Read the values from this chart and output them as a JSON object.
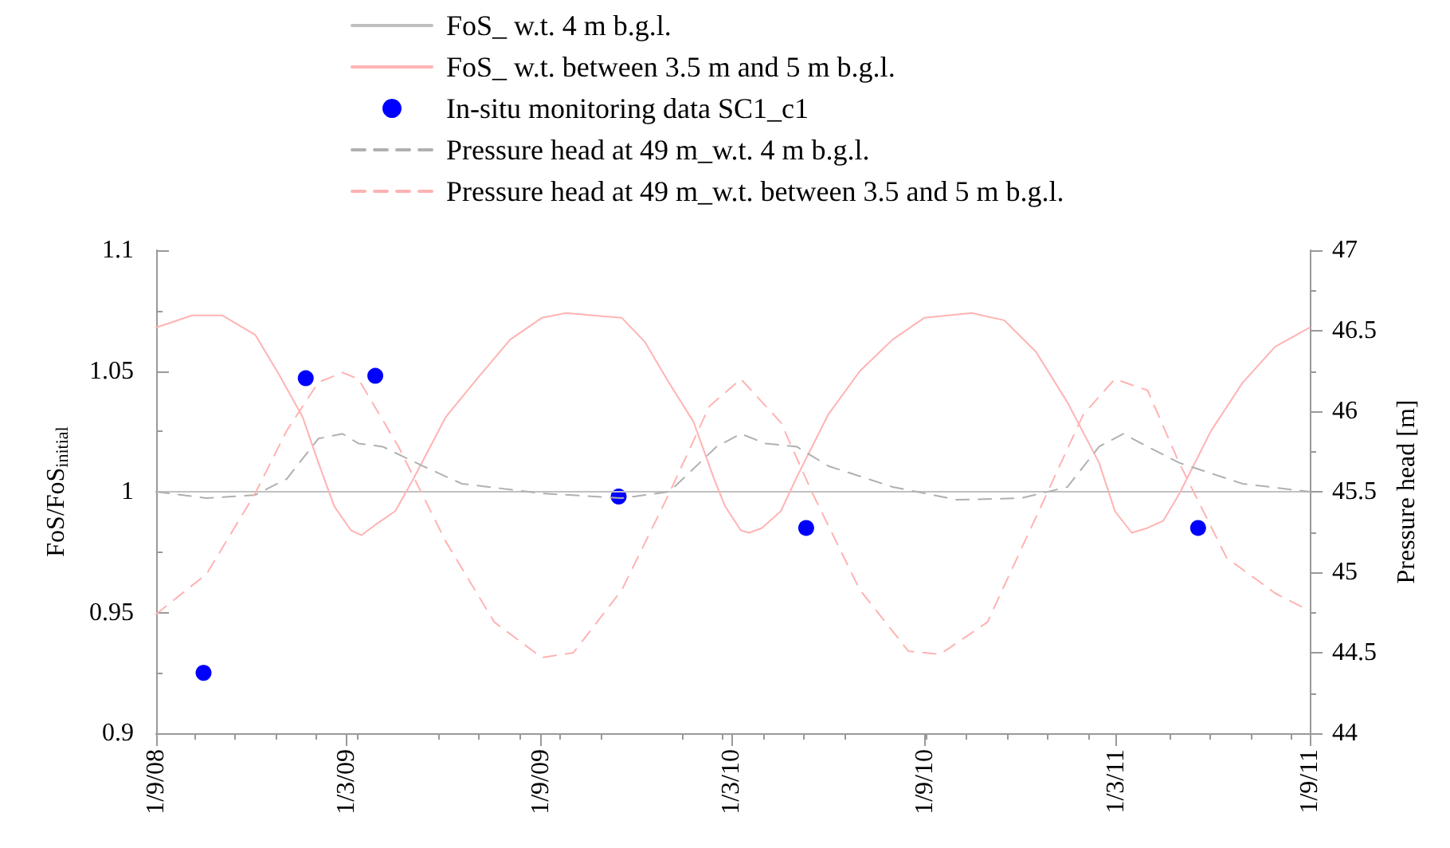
{
  "chart_data": {
    "type": "line",
    "ylabel": "FoS/FoS$_{initial}$",
    "y2label": "Pressure head [m]",
    "xlim": [
      "2008-09-01",
      "2011-09-01"
    ],
    "xticks": [
      {
        "value": "2008-09-01",
        "label": "1/9/08"
      },
      {
        "value": "2009-03-01",
        "label": "1/3/09"
      },
      {
        "value": "2009-09-01",
        "label": "1/9/09"
      },
      {
        "value": "2010-03-01",
        "label": "1/3/10"
      },
      {
        "value": "2010-09-01",
        "label": "1/9/10"
      },
      {
        "value": "2011-03-01",
        "label": "1/3/11"
      },
      {
        "value": "2011-09-01",
        "label": "1/9/11"
      }
    ],
    "ylim": [
      0.9,
      1.1
    ],
    "yticks": [
      0.9,
      0.95,
      1,
      1.05,
      1.1
    ],
    "y2lim": [
      44,
      47
    ],
    "y2ticks": [
      44,
      44.5,
      45,
      45.5,
      46,
      46.5,
      47
    ],
    "grid": false,
    "legend": "top",
    "series": [
      {
        "name": "FoS_ w.t. 4 m b.g.l.",
        "color": "#c0c0c0",
        "marker": "none",
        "line_style": "solid",
        "x": [
          "2008-09-01",
          "2011-09-01"
        ],
        "values": [
          1,
          1
        ]
      },
      {
        "name": "FoS_ w.t. between 3.5 m and 5 m b.g.l.",
        "color": "#ffb3b3",
        "marker": "none",
        "line_style": "solid",
        "x": [
          "2008-09-01",
          "2008-10-05",
          "2008-11-03",
          "2008-12-04",
          "2008-12-26",
          "2009-01-18",
          "2009-02-02",
          "2009-02-17",
          "2009-03-05",
          "2009-03-15",
          "2009-03-27",
          "2009-04-16",
          "2009-05-04",
          "2009-06-03",
          "2009-07-03",
          "2009-08-03",
          "2009-09-02",
          "2009-09-25",
          "2009-11-17",
          "2009-12-09",
          "2010-01-01",
          "2010-01-24",
          "2010-02-12",
          "2010-02-23",
          "2010-03-10",
          "2010-03-18",
          "2010-03-30",
          "2010-04-17",
          "2010-05-02",
          "2010-06-01",
          "2010-07-01",
          "2010-08-01",
          "2010-08-31",
          "2010-10-15",
          "2010-11-15",
          "2010-12-15",
          "2011-01-14",
          "2011-02-13",
          "2011-02-28",
          "2011-03-16",
          "2011-03-31",
          "2011-04-15",
          "2011-04-30",
          "2011-05-30",
          "2011-06-29",
          "2011-07-30",
          "2011-09-01"
        ],
        "values": [
          1.068,
          1.073,
          1.073,
          1.065,
          1.049,
          1.031,
          1.012,
          0.994,
          0.984,
          0.982,
          0.986,
          0.992,
          1.006,
          1.031,
          1.047,
          1.063,
          1.072,
          1.074,
          1.072,
          1.062,
          1.045,
          1.029,
          1.006,
          0.994,
          0.984,
          0.983,
          0.985,
          0.992,
          1.006,
          1.032,
          1.05,
          1.063,
          1.072,
          1.074,
          1.071,
          1.058,
          1.037,
          1.012,
          0.992,
          0.983,
          0.985,
          0.988,
          0.999,
          1.025,
          1.045,
          1.06,
          1.068
        ]
      },
      {
        "name": "In-situ monitoring data SC1_c1",
        "type": "scatter",
        "color": "#0000ff",
        "marker": "circle",
        "x": [
          "2008-10-16",
          "2009-01-21",
          "2009-03-28",
          "2009-11-14",
          "2010-05-11",
          "2011-05-18"
        ],
        "values": [
          0.925,
          1.047,
          1.048,
          0.998,
          0.985,
          0.985
        ]
      },
      {
        "name": "Pressure head at 49 m_w.t. 4 m b.g.l.",
        "axis": "y2",
        "color": "#b0b0b0",
        "marker": "none",
        "line_style": "dashed",
        "x": [
          "2008-09-01",
          "2008-10-19",
          "2008-12-04",
          "2009-01-03",
          "2009-02-02",
          "2009-02-25",
          "2009-03-12",
          "2009-04-04",
          "2009-05-12",
          "2009-06-18",
          "2009-09-02",
          "2009-11-17",
          "2010-01-01",
          "2010-02-15",
          "2010-03-10",
          "2010-04-02",
          "2010-05-02",
          "2010-06-01",
          "2010-08-01",
          "2010-10-01",
          "2010-12-01",
          "2011-01-14",
          "2011-02-13",
          "2011-03-08",
          "2011-03-31",
          "2011-04-30",
          "2011-06-29",
          "2011-09-01"
        ],
        "values": [
          45.5,
          45.46,
          45.48,
          45.58,
          45.83,
          45.86,
          45.8,
          45.78,
          45.66,
          45.55,
          45.49,
          45.46,
          45.5,
          45.78,
          45.86,
          45.8,
          45.78,
          45.66,
          45.53,
          45.45,
          45.46,
          45.53,
          45.78,
          45.86,
          45.78,
          45.68,
          45.55,
          45.5
        ]
      },
      {
        "name": "Pressure head at 49 m_w.t. between 3.5 and 5 m b.g.l.",
        "axis": "y2",
        "color": "#ffb3b3",
        "marker": "none",
        "line_style": "dashed",
        "x": [
          "2008-09-01",
          "2008-10-19",
          "2008-12-04",
          "2009-01-03",
          "2009-02-02",
          "2009-02-25",
          "2009-03-12",
          "2009-04-19",
          "2009-06-03",
          "2009-07-19",
          "2009-09-02",
          "2009-10-02",
          "2009-11-17",
          "2010-01-01",
          "2010-02-08",
          "2010-03-10",
          "2010-04-17",
          "2010-05-17",
          "2010-07-01",
          "2010-08-16",
          "2010-09-15",
          "2010-10-30",
          "2010-12-15",
          "2011-01-29",
          "2011-02-28",
          "2011-03-31",
          "2011-04-30",
          "2011-06-14",
          "2011-07-30",
          "2011-09-01"
        ],
        "values": [
          44.74,
          44.99,
          45.49,
          45.88,
          46.18,
          46.24,
          46.2,
          45.78,
          45.19,
          44.69,
          44.47,
          44.5,
          44.89,
          45.49,
          46.03,
          46.2,
          45.93,
          45.49,
          44.89,
          44.51,
          44.49,
          44.69,
          45.34,
          45.98,
          46.2,
          46.13,
          45.68,
          45.09,
          44.87,
          44.76
        ]
      }
    ]
  }
}
